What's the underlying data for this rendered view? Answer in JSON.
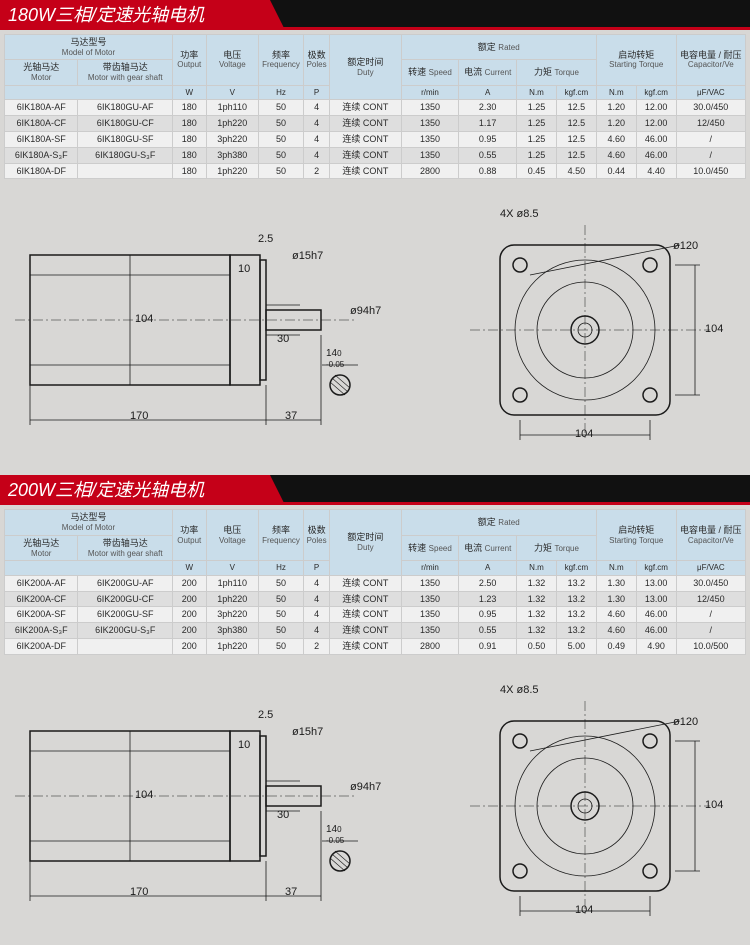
{
  "colors": {
    "accent": "#c50018",
    "header_bg": "#111111",
    "table_header": "#c9ddea",
    "page_bg": "#d8d7d5",
    "row_odd": "#f0f0f0",
    "row_even": "#dedede",
    "border": "#cccccc"
  },
  "sections": [
    {
      "title": "180W三相/定速光轴电机"
    },
    {
      "title": "200W三相/定速光轴电机"
    }
  ],
  "labels": {
    "model": "马达型号",
    "model_en": "Model of Motor",
    "motor": "光轴马达",
    "motor_en": "Motor",
    "gear_motor": "带齿轴马达",
    "gear_motor_en": "Motor with gear shaft",
    "output": "功率",
    "output_en": "Output",
    "voltage": "电压",
    "voltage_en": "Voltage",
    "freq": "频率",
    "freq_en": "Frequency",
    "poles": "极数",
    "poles_en": "Poles",
    "duty": "额定时间",
    "duty_en": "Duty",
    "rated": "额定",
    "rated_en": "Rated",
    "speed": "转速",
    "speed_en": "Speed",
    "current": "电流",
    "current_en": "Current",
    "torque": "力矩",
    "torque_en": "Torque",
    "start_torque": "启动转矩",
    "start_torque_en": "Starting Torque",
    "capacitor": "电容电量 / 耐压",
    "capacitor_en": "Capacitor/Ve",
    "u_output": "W",
    "u_voltage": "V",
    "u_freq": "Hz",
    "u_poles": "P",
    "u_speed": "r/min",
    "u_current": "A",
    "u_nm": "N.m",
    "u_kgfcm": "kgf.cm",
    "u_cap": "μF/VAC"
  },
  "table180": [
    [
      "6IK180A-AF",
      "6IK180GU-AF",
      "180",
      "1ph110",
      "50",
      "4",
      "连续 CONT",
      "1350",
      "2.30",
      "1.25",
      "12.5",
      "1.20",
      "12.00",
      "30.0/450"
    ],
    [
      "6IK180A-CF",
      "6IK180GU-CF",
      "180",
      "1ph220",
      "50",
      "4",
      "连续 CONT",
      "1350",
      "1.17",
      "1.25",
      "12.5",
      "1.20",
      "12.00",
      "12/450"
    ],
    [
      "6IK180A-SF",
      "6IK180GU-SF",
      "180",
      "3ph220",
      "50",
      "4",
      "连续 CONT",
      "1350",
      "0.95",
      "1.25",
      "12.5",
      "4.60",
      "46.00",
      "/"
    ],
    [
      "6IK180A-S₃F",
      "6IK180GU-S₃F",
      "180",
      "3ph380",
      "50",
      "4",
      "连续 CONT",
      "1350",
      "0.55",
      "1.25",
      "12.5",
      "4.60",
      "46.00",
      "/"
    ],
    [
      "6IK180A-DF",
      "",
      "180",
      "1ph220",
      "50",
      "2",
      "连续 CONT",
      "2800",
      "0.88",
      "0.45",
      "4.50",
      "0.44",
      "4.40",
      "10.0/450"
    ]
  ],
  "table200": [
    [
      "6IK200A-AF",
      "6IK200GU-AF",
      "200",
      "1ph110",
      "50",
      "4",
      "连续 CONT",
      "1350",
      "2.50",
      "1.32",
      "13.2",
      "1.30",
      "13.00",
      "30.0/450"
    ],
    [
      "6IK200A-CF",
      "6IK200GU-CF",
      "200",
      "1ph220",
      "50",
      "4",
      "连续 CONT",
      "1350",
      "1.23",
      "1.32",
      "13.2",
      "1.30",
      "13.00",
      "12/450"
    ],
    [
      "6IK200A-SF",
      "6IK200GU-SF",
      "200",
      "3ph220",
      "50",
      "4",
      "连续 CONT",
      "1350",
      "0.95",
      "1.32",
      "13.2",
      "4.60",
      "46.00",
      "/"
    ],
    [
      "6IK200A-S₃F",
      "6IK200GU-S₃F",
      "200",
      "3ph380",
      "50",
      "4",
      "连续 CONT",
      "1350",
      "0.55",
      "1.32",
      "13.2",
      "4.60",
      "46.00",
      "/"
    ],
    [
      "6IK200A-DF",
      "",
      "200",
      "1ph220",
      "50",
      "2",
      "连续 CONT",
      "2800",
      "0.91",
      "0.50",
      "5.00",
      "0.49",
      "4.90",
      "10.0/500"
    ]
  ],
  "dims": {
    "len_body": "170",
    "len_shaft": "37",
    "len_shaft_step": "30",
    "dia_body": "104",
    "dia_flange": "ø94h7",
    "dia_shaft": "ø15h7",
    "flange_thk": "2.5",
    "step": "10",
    "key_w": "14",
    "key_tol": "0\n-0.05",
    "front_sq": "104",
    "front_sq_v": "104",
    "bolt": "4X ø8.5",
    "bolt_circle": "ø120"
  },
  "typography": {
    "header_fontsize": 18,
    "table_fontsize": 9,
    "dim_fontsize": 11
  }
}
